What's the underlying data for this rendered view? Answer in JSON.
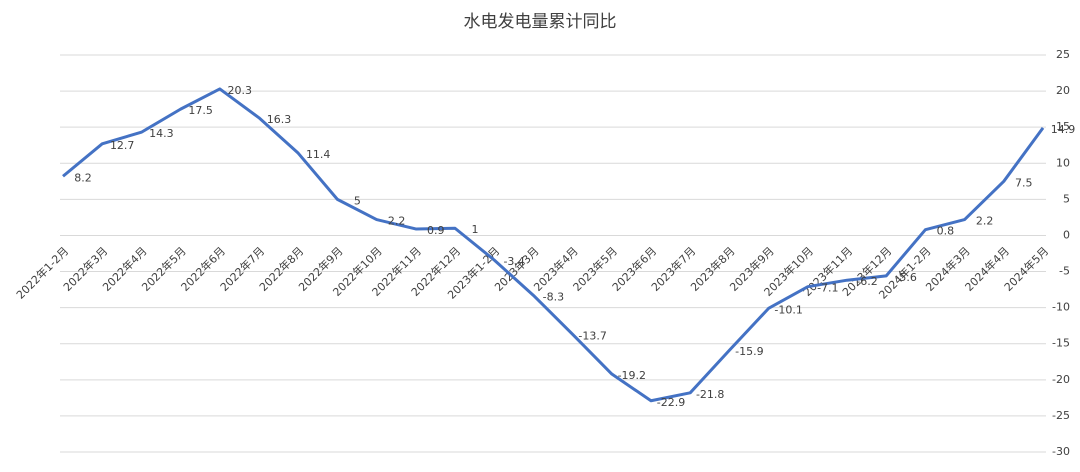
{
  "chart_data": {
    "type": "line",
    "title": "水电发电量累计同比",
    "categories": [
      "2022年1-2月",
      "2022年3月",
      "2022年4月",
      "2022年5月",
      "2022年6月",
      "2022年7月",
      "2022年8月",
      "2022年9月",
      "2022年10月",
      "2022年11月",
      "2022年12月",
      "2023年1-2月",
      "2023年3月",
      "2023年4月",
      "2023年5月",
      "2023年6月",
      "2023年7月",
      "2023年8月",
      "2023年9月",
      "2023年10月",
      "2023年11月",
      "2023年12月",
      "2024年1-2月",
      "2024年3月",
      "2024年4月",
      "2024年5月"
    ],
    "series": [
      {
        "name": "水电发电量累计同比",
        "color": "#4472c4",
        "values": [
          8.2,
          12.7,
          14.3,
          17.5,
          20.3,
          16.3,
          11.4,
          5,
          2.2,
          0.9,
          1,
          -3.4,
          -8.3,
          -13.7,
          -19.2,
          -22.9,
          -21.8,
          -15.9,
          -10.1,
          -7.1,
          -6.2,
          -5.6,
          0.8,
          2.2,
          7.5,
          14.9
        ]
      }
    ],
    "ylim": [
      -30,
      25
    ],
    "yticks": [
      -30,
      -25,
      -20,
      -15,
      -10,
      -5,
      0,
      5,
      10,
      15,
      20,
      25
    ],
    "grid": true
  }
}
